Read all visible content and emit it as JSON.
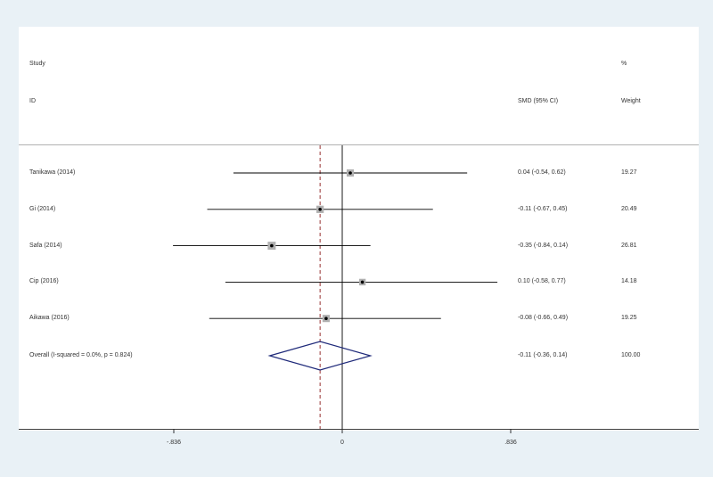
{
  "headers": {
    "study_top": "Study",
    "study_bottom": "ID",
    "ci_label": "SMD (95% CI)",
    "weight_top": "%",
    "weight_bottom": "Weight"
  },
  "colors": {
    "background": "#e9f1f6",
    "panel": "#ffffff",
    "line": "#000000",
    "marker_box": "#b0b0b0",
    "diamond": "#1f2a7a",
    "overall_line": "#8b1a1a"
  },
  "chart_data": {
    "type": "forest",
    "measure": "SMD",
    "studies": [
      {
        "name": "Tanikawa  (2014)",
        "smd": 0.04,
        "lower": -0.54,
        "upper": 0.62,
        "ci_text": "0.04 (-0.54, 0.62)",
        "weight": 19.27,
        "weight_text": "19.27"
      },
      {
        "name": "Gi (2014)",
        "smd": -0.11,
        "lower": -0.67,
        "upper": 0.45,
        "ci_text": "-0.11 (-0.67, 0.45)",
        "weight": 20.49,
        "weight_text": "20.49"
      },
      {
        "name": "Safa (2014)",
        "smd": -0.35,
        "lower": -0.84,
        "upper": 0.14,
        "ci_text": "-0.35 (-0.84, 0.14)",
        "weight": 26.81,
        "weight_text": "26.81"
      },
      {
        "name": "Cip  (2016)",
        "smd": 0.1,
        "lower": -0.58,
        "upper": 0.77,
        "ci_text": "0.10 (-0.58, 0.77)",
        "weight": 14.18,
        "weight_text": "14.18"
      },
      {
        "name": "Aikawa (2016)",
        "smd": -0.08,
        "lower": -0.66,
        "upper": 0.49,
        "ci_text": "-0.08 (-0.66, 0.49)",
        "weight": 19.25,
        "weight_text": "19.25"
      }
    ],
    "overall": {
      "label": "Overall  (I-squared = 0.0%, p = 0.824)",
      "smd": -0.11,
      "lower": -0.36,
      "upper": 0.14,
      "ci_text": "-0.11 (-0.36, 0.14)",
      "weight": 100.0,
      "weight_text": "100.00"
    },
    "x_ticks": [
      {
        "value": -0.836,
        "label": "-.836"
      },
      {
        "value": 0,
        "label": "0"
      },
      {
        "value": 0.836,
        "label": ".836"
      }
    ],
    "xlim": [
      -0.836,
      0.836
    ],
    "null_line": 0
  }
}
